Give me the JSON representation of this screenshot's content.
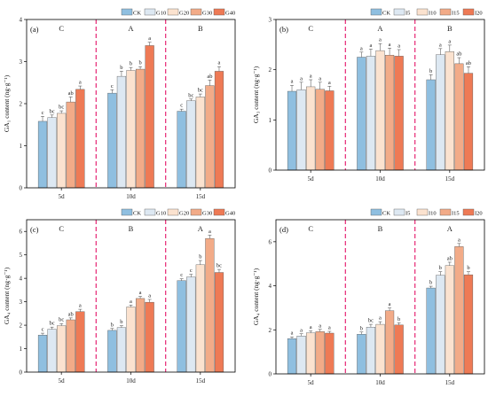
{
  "colors": {
    "CK": "#8fbfe0",
    "L1": "#dde8f2",
    "L2": "#fbe2cf",
    "L3": "#f2ab88",
    "L4": "#ee7a55",
    "divider": "#e8377f",
    "axis": "#000000"
  },
  "chart_data": [
    {
      "type": "bar",
      "panel": "(a)",
      "ylabel": "GA₁ content (ng·g⁻¹)",
      "ylim": [
        0,
        4
      ],
      "yticks": [
        0,
        1,
        2,
        3,
        4
      ],
      "categories": [
        "5d",
        "10d",
        "15d"
      ],
      "group_letters": [
        "C",
        "A",
        "B"
      ],
      "legend": [
        "CK",
        "G10",
        "G20",
        "G30",
        "G40"
      ],
      "series": [
        {
          "name": "CK",
          "values": [
            1.58,
            2.25,
            1.82
          ],
          "errors": [
            0.12,
            0.08,
            0.05
          ],
          "letters": [
            "c",
            "c",
            "c"
          ]
        },
        {
          "name": "G10",
          "values": [
            1.67,
            2.65,
            2.07
          ],
          "errors": [
            0.06,
            0.12,
            0.04
          ],
          "letters": [
            "bc",
            "b",
            "bc"
          ]
        },
        {
          "name": "G20",
          "values": [
            1.77,
            2.79,
            2.16
          ],
          "errors": [
            0.06,
            0.07,
            0.07
          ],
          "letters": [
            "bc",
            "b",
            "bc"
          ]
        },
        {
          "name": "G30",
          "values": [
            2.04,
            2.82,
            2.43
          ],
          "errors": [
            0.12,
            0.06,
            0.13
          ],
          "letters": [
            "ab",
            "b",
            "ab"
          ]
        },
        {
          "name": "G40",
          "values": [
            2.34,
            3.38,
            2.77
          ],
          "errors": [
            0.08,
            0.08,
            0.11
          ],
          "letters": [
            "a",
            "a",
            "a"
          ]
        }
      ]
    },
    {
      "type": "bar",
      "panel": "(b)",
      "ylabel": "GA₃ content (ng·g⁻¹)",
      "ylim": [
        0,
        3
      ],
      "yticks": [
        0,
        1,
        2,
        3
      ],
      "categories": [
        "5d",
        "10d",
        "15d"
      ],
      "group_letters": [
        "C",
        "A",
        "B"
      ],
      "legend": [
        "CK",
        "I5",
        "I10",
        "I15",
        "I20"
      ],
      "series": [
        {
          "name": "CK",
          "values": [
            1.57,
            2.25,
            1.8
          ],
          "errors": [
            0.12,
            0.1,
            0.1
          ],
          "letters": [
            "a",
            "a",
            "b"
          ]
        },
        {
          "name": "I5",
          "values": [
            1.6,
            2.27,
            2.3
          ],
          "errors": [
            0.15,
            0.14,
            0.12
          ],
          "letters": [
            "a",
            "a",
            "a"
          ]
        },
        {
          "name": "I10",
          "values": [
            1.66,
            2.38,
            2.36
          ],
          "errors": [
            0.14,
            0.14,
            0.13
          ],
          "letters": [
            "a",
            "a",
            "a"
          ]
        },
        {
          "name": "I15",
          "values": [
            1.61,
            2.29,
            2.12
          ],
          "errors": [
            0.14,
            0.14,
            0.12
          ],
          "letters": [
            "a",
            "a",
            "ab"
          ]
        },
        {
          "name": "I20",
          "values": [
            1.58,
            2.27,
            1.93
          ],
          "errors": [
            0.09,
            0.13,
            0.13
          ],
          "letters": [
            "a",
            "a",
            "ab"
          ]
        }
      ]
    },
    {
      "type": "bar",
      "panel": "(c)",
      "ylabel": "GA₄ content (ng·g⁻¹)",
      "ylim": [
        0,
        6.5
      ],
      "yticks": [
        0,
        1,
        2,
        3,
        4,
        5,
        6
      ],
      "categories": [
        "5d",
        "10d",
        "15d"
      ],
      "group_letters": [
        "C",
        "B",
        "A"
      ],
      "legend": [
        "CK",
        "G10",
        "G20",
        "G30",
        "G40"
      ],
      "series": [
        {
          "name": "CK",
          "values": [
            1.58,
            1.78,
            3.9
          ],
          "errors": [
            0.08,
            0.08,
            0.08
          ],
          "letters": [
            "c",
            "b",
            "c"
          ]
        },
        {
          "name": "G10",
          "values": [
            1.83,
            1.9,
            4.06
          ],
          "errors": [
            0.09,
            0.08,
            0.11
          ],
          "letters": [
            "bc",
            "b",
            "c"
          ]
        },
        {
          "name": "G20",
          "values": [
            1.98,
            2.78,
            4.58
          ],
          "errors": [
            0.09,
            0.08,
            0.18
          ],
          "letters": [
            "bc",
            "a",
            "b"
          ]
        },
        {
          "name": "G30",
          "values": [
            2.23,
            3.14,
            5.7
          ],
          "errors": [
            0.08,
            0.09,
            0.14
          ],
          "letters": [
            "ab",
            "a",
            "a"
          ]
        },
        {
          "name": "G40",
          "values": [
            2.58,
            2.98,
            4.25
          ],
          "errors": [
            0.1,
            0.12,
            0.13
          ],
          "letters": [
            "a",
            "a",
            "bc"
          ]
        }
      ]
    },
    {
      "type": "bar",
      "panel": "(d)",
      "ylabel": "GA₄ content (ng·g⁻¹)",
      "ylim": [
        0,
        7
      ],
      "yticks": [
        0,
        2,
        4,
        6
      ],
      "categories": [
        "5d",
        "10d",
        "15d"
      ],
      "group_letters": [
        "C",
        "B",
        "A"
      ],
      "legend": [
        "CK",
        "I5",
        "I10",
        "I15",
        "I20"
      ],
      "series": [
        {
          "name": "CK",
          "values": [
            1.6,
            1.8,
            3.9
          ],
          "errors": [
            0.08,
            0.1,
            0.08
          ],
          "letters": [
            "a",
            "b",
            "b"
          ]
        },
        {
          "name": "I5",
          "values": [
            1.72,
            2.12,
            4.48
          ],
          "errors": [
            0.1,
            0.13,
            0.16
          ],
          "letters": [
            "a",
            "bc",
            "b"
          ]
        },
        {
          "name": "I10",
          "values": [
            1.86,
            2.25,
            4.92
          ],
          "errors": [
            0.09,
            0.12,
            0.15
          ],
          "letters": [
            "a",
            "a",
            "ab"
          ]
        },
        {
          "name": "I15",
          "values": [
            1.92,
            2.87,
            5.78
          ],
          "errors": [
            0.1,
            0.12,
            0.14
          ],
          "letters": [
            "a",
            "a",
            "a"
          ]
        },
        {
          "name": "I20",
          "values": [
            1.85,
            2.22,
            4.5
          ],
          "errors": [
            0.08,
            0.1,
            0.14
          ],
          "letters": [
            "a",
            "b",
            "b"
          ]
        }
      ]
    }
  ]
}
